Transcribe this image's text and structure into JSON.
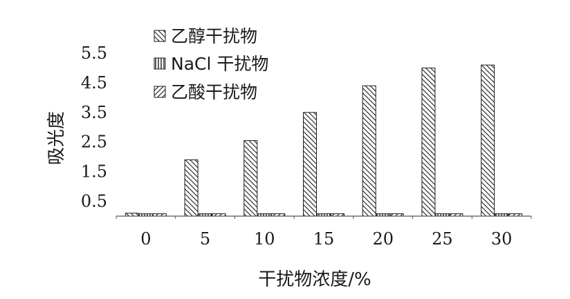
{
  "chart_data": {
    "type": "bar",
    "title": "",
    "xlabel": "干扰物浓度/%",
    "ylabel": "吸光度",
    "categories": [
      "0",
      "5",
      "10",
      "15",
      "20",
      "25",
      "30"
    ],
    "series": [
      {
        "name": "乙醇干扰物",
        "values": [
          0.1,
          1.9,
          2.55,
          3.5,
          4.4,
          5.0,
          5.1
        ],
        "pattern": "diag-back"
      },
      {
        "name": "NaCl 干扰物",
        "values": [
          0.08,
          0.08,
          0.08,
          0.08,
          0.08,
          0.08,
          0.08
        ],
        "pattern": "vertical"
      },
      {
        "name": "乙酸干扰物",
        "values": [
          0.08,
          0.08,
          0.08,
          0.08,
          0.08,
          0.08,
          0.08
        ],
        "pattern": "diag-fwd"
      }
    ],
    "yticks": [
      "0.5",
      "1.5",
      "2.5",
      "3.5",
      "4.5",
      "5.5"
    ],
    "ylim": [
      0,
      5.5
    ],
    "grid": false,
    "legend_position": "top-left"
  }
}
